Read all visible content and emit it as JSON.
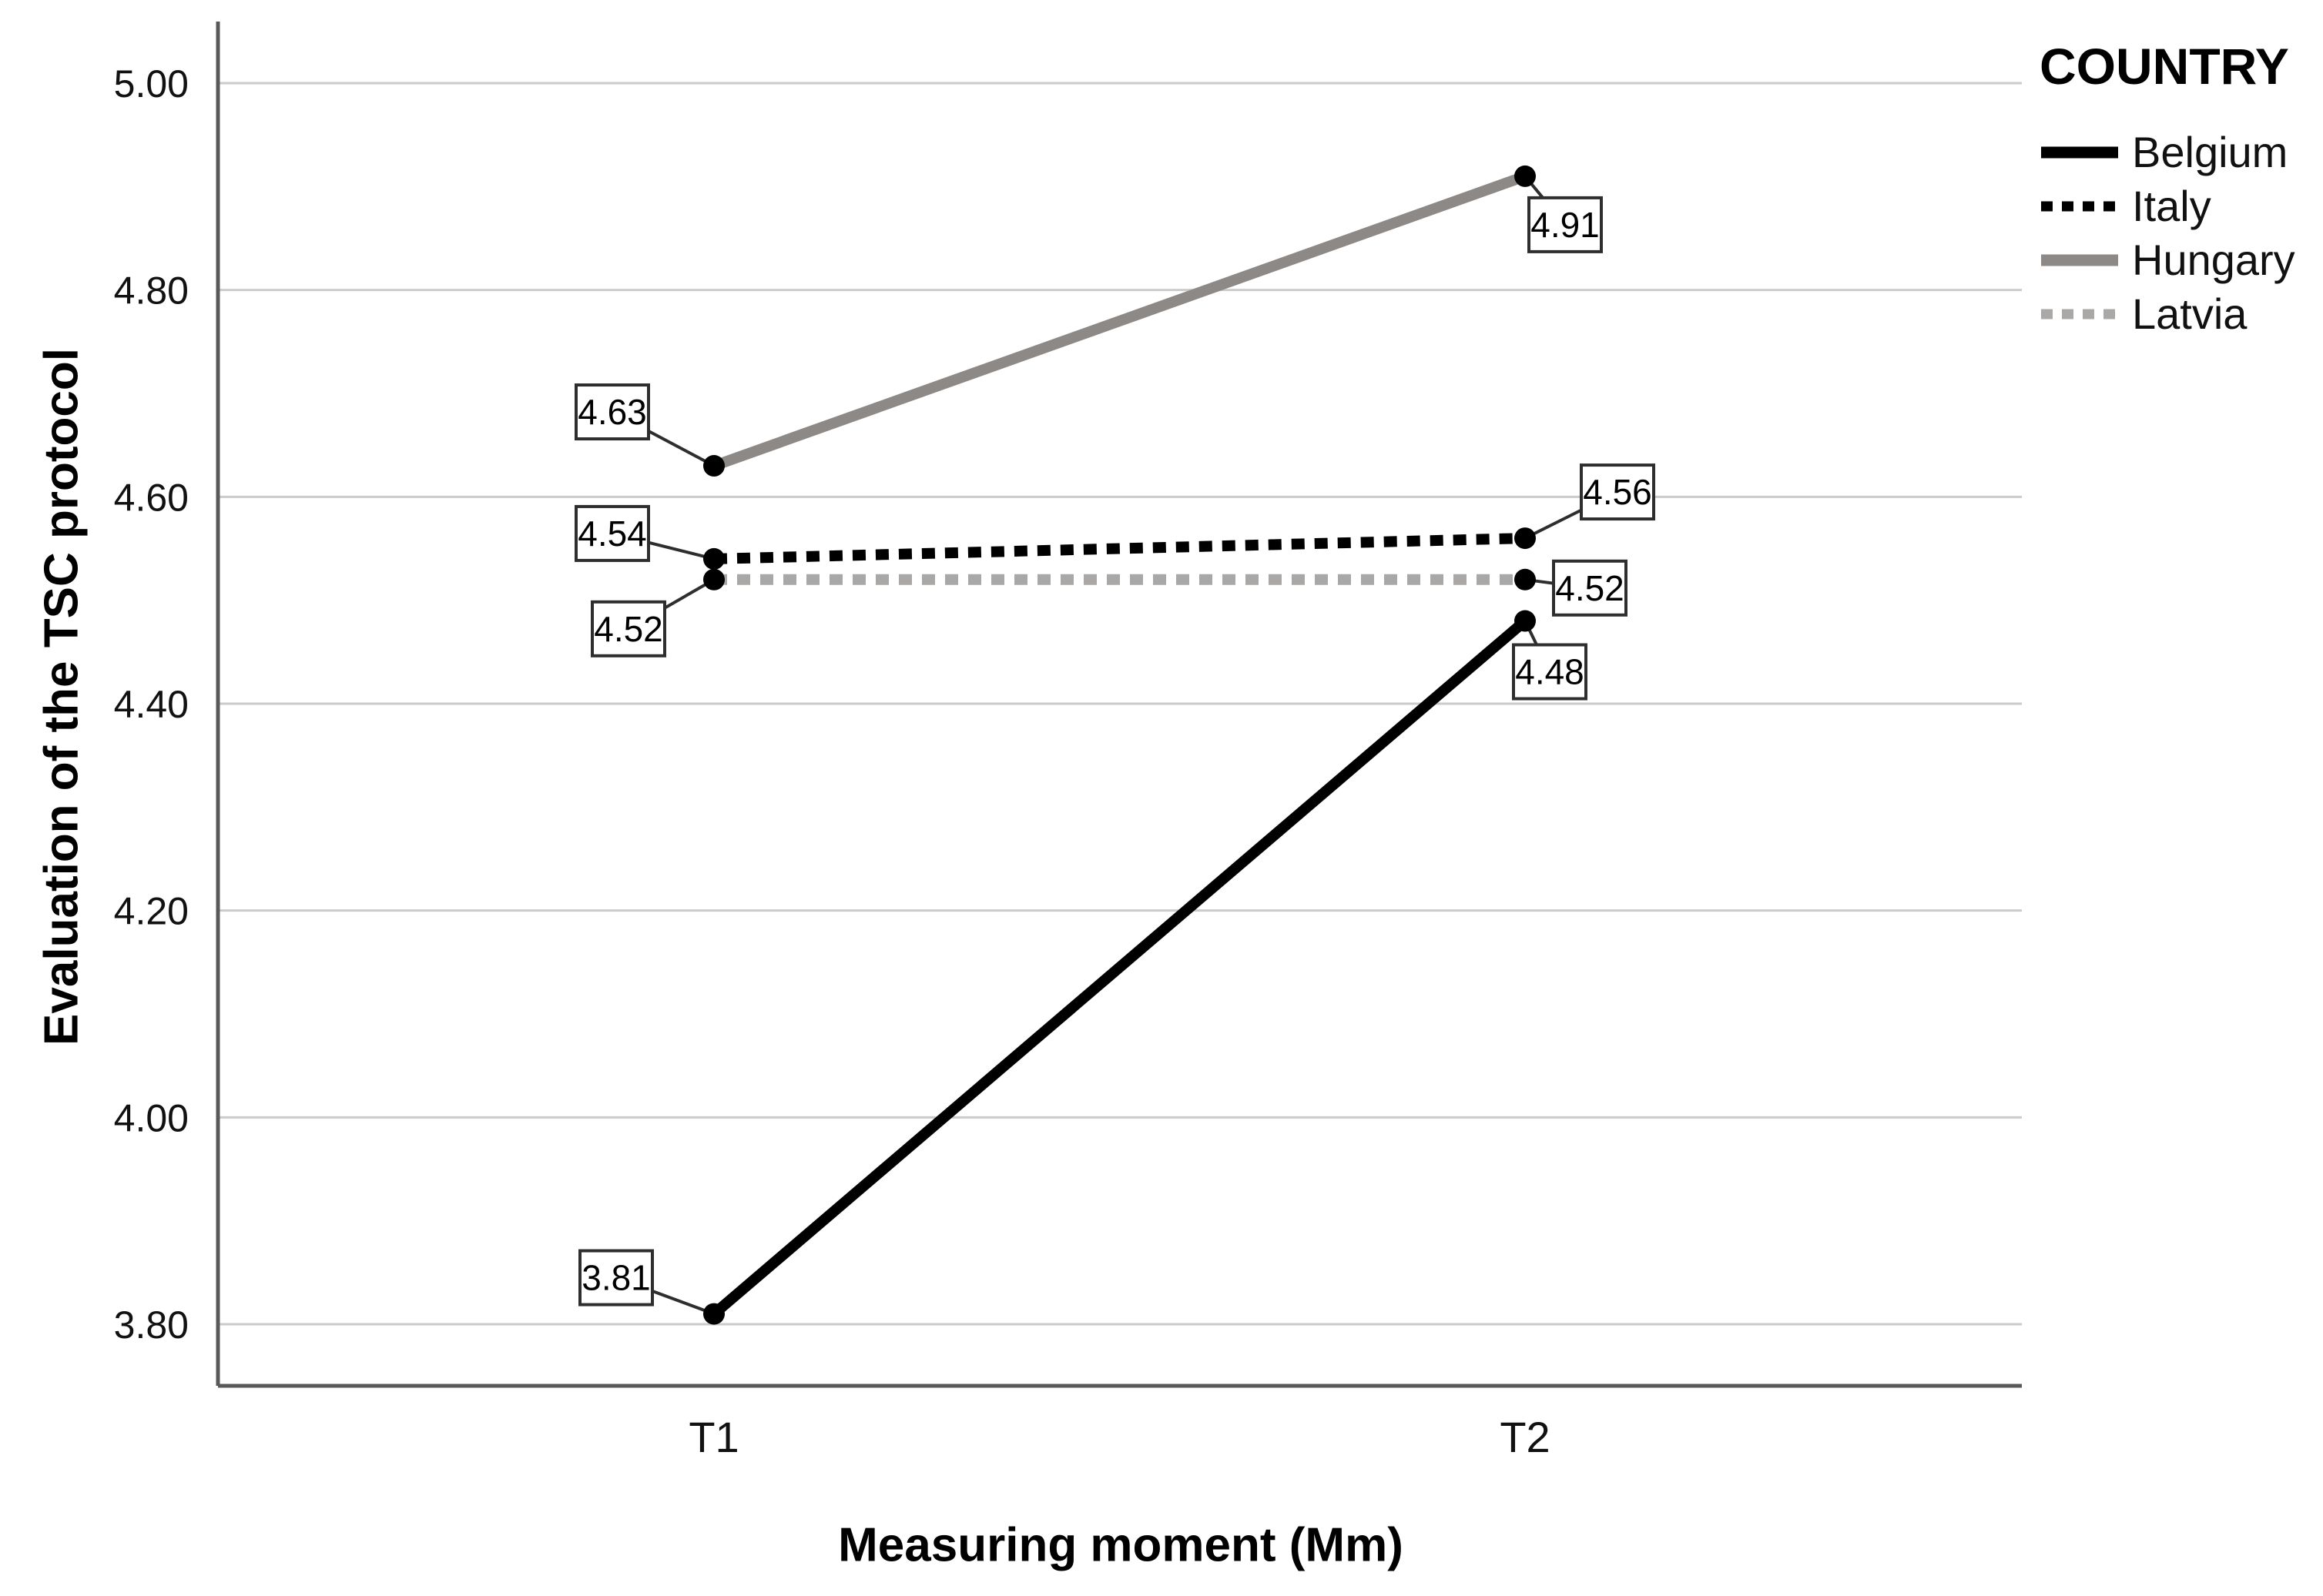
{
  "chart_data": {
    "type": "line",
    "title": "",
    "xlabel": "Measuring moment (Mm)",
    "ylabel": "Evaluation of the TSC protocol",
    "categories": [
      "T1",
      "T2"
    ],
    "y_ticks": [
      {
        "label": "5.00",
        "value": 5.0
      },
      {
        "label": "4.80",
        "value": 4.8
      },
      {
        "label": "4.60",
        "value": 4.6
      },
      {
        "label": "4.40",
        "value": 4.4
      },
      {
        "label": "4.20",
        "value": 4.2
      },
      {
        "label": "4.00",
        "value": 4.0
      },
      {
        "label": "3.80",
        "value": 3.8
      }
    ],
    "ylim": [
      3.74,
      5.06
    ],
    "grid": true,
    "legend_position": "top-right",
    "legend_title": "COUNTRY",
    "series": [
      {
        "name": "Belgium",
        "values": [
          3.81,
          4.48
        ],
        "point_labels": [
          "3.81",
          "4.48"
        ],
        "color": "#000000",
        "line_style": "solid"
      },
      {
        "name": "Italy",
        "values": [
          4.54,
          4.56
        ],
        "point_labels": [
          "4.54",
          "4.56"
        ],
        "color": "#000000",
        "line_style": "dotted"
      },
      {
        "name": "Hungary",
        "values": [
          4.63,
          4.91
        ],
        "point_labels": [
          "4.63",
          "4.91"
        ],
        "color": "#8c8987",
        "line_style": "solid"
      },
      {
        "name": "Latvia",
        "values": [
          4.52,
          4.52
        ],
        "point_labels": [
          "4.52",
          "4.52"
        ],
        "color": "#aaa8a6",
        "line_style": "dotted"
      }
    ],
    "marker_color": "#000000",
    "gridline_color": "#cccbca",
    "axis_line_color": "#595959"
  }
}
